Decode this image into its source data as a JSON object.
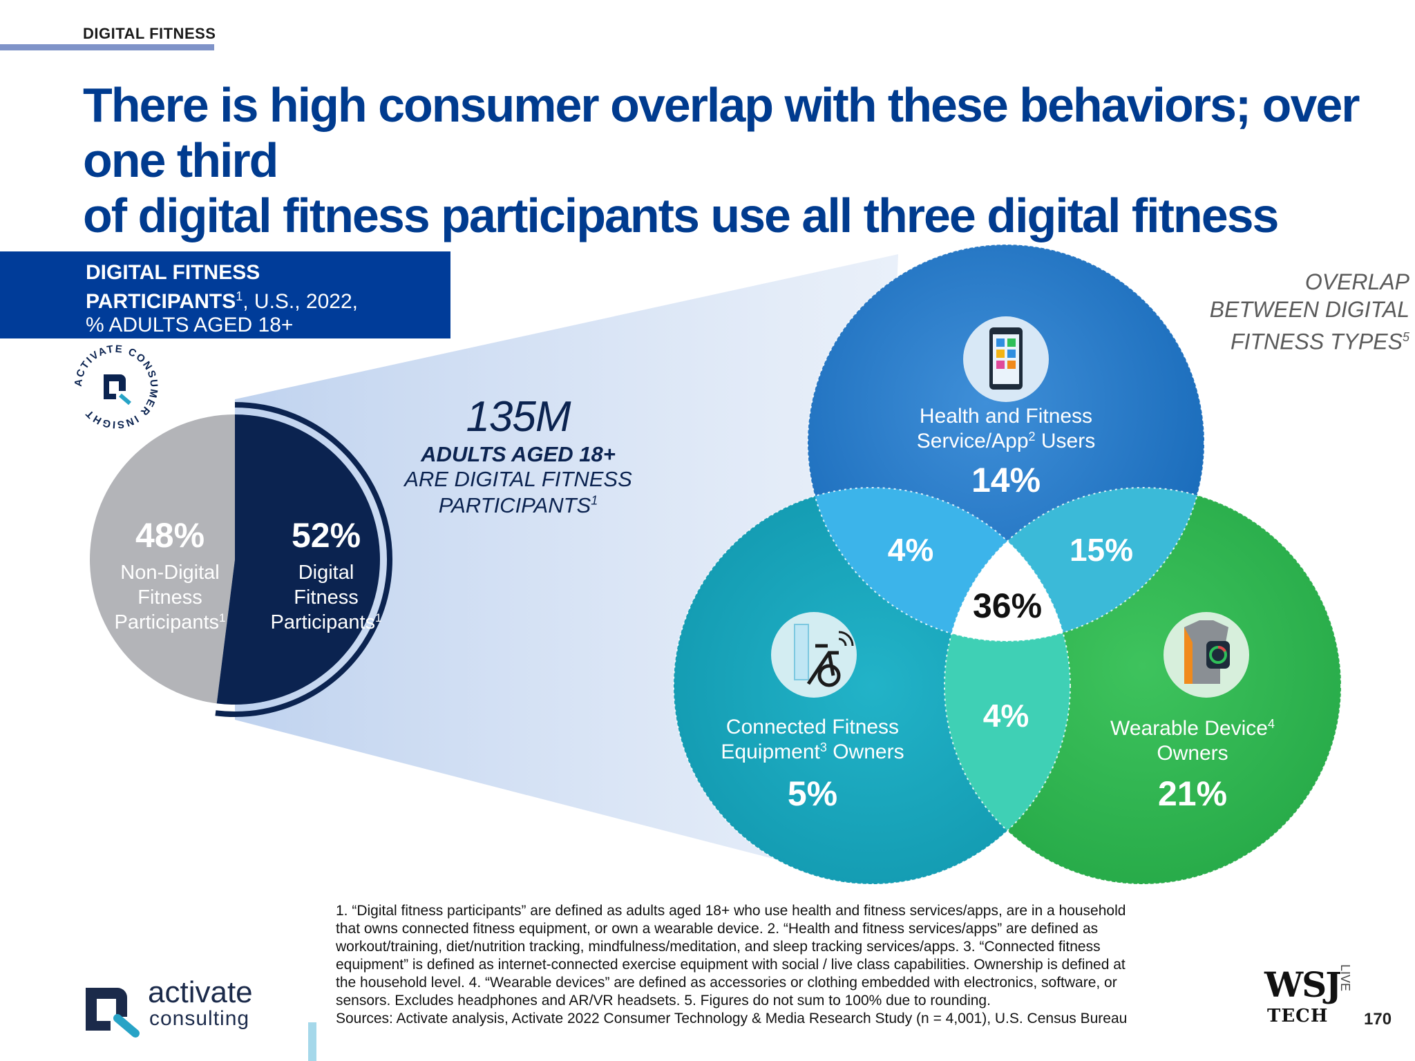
{
  "header": {
    "section_tag": "DIGITAL FITNESS",
    "headline_line1": "There is high consumer overlap with these behaviors; over one third",
    "headline_line2": "of digital fitness participants use all three digital fitness types"
  },
  "box": {
    "line1": "DIGITAL FITNESS",
    "line2_bold": "PARTICIPANTS",
    "line2_sup": "1",
    "line2_rest": ", U.S., 2022,",
    "line3": "% ADULTS AGED 18+"
  },
  "badge": {
    "text": "ACTIVATE CONSUMER INSIGHT"
  },
  "callout": {
    "number": "135M",
    "line1": "ADULTS AGED 18+",
    "line2": "ARE DIGITAL FITNESS",
    "line3": "PARTICIPANTS",
    "line3_sup": "1"
  },
  "overlap_label": {
    "line1": "OVERLAP",
    "line2": "BETWEEN DIGITAL",
    "line3": "FITNESS TYPES",
    "sup": "5"
  },
  "chart_data": [
    {
      "type": "pie",
      "labels": [
        "Non-Digital Fitness Participants",
        "Digital Fitness Participants"
      ],
      "values": [
        48,
        52
      ],
      "value_labels": [
        "48%",
        "52%"
      ],
      "label_lines": [
        [
          "Non-Digital",
          "Fitness",
          "Participants"
        ],
        [
          "Digital",
          "Fitness",
          "Participants"
        ]
      ],
      "label_sup": "1",
      "colors": [
        "#b3b4b8",
        "#0b2350"
      ]
    },
    {
      "type": "venn",
      "sets": [
        {
          "name_lines": [
            "Health and Fitness",
            "Service/App",
            " Users"
          ],
          "sup": "2",
          "value": 14,
          "label": "14%",
          "color": "#1f78c8"
        },
        {
          "name_lines": [
            "Connected Fitness",
            "Equipment",
            " Owners"
          ],
          "sup": "3",
          "value": 5,
          "label": "5%",
          "color": "#1aa3b9"
        },
        {
          "name_lines": [
            "Wearable Device",
            "Owners"
          ],
          "sup": "4",
          "value": 21,
          "label": "21%",
          "color": "#2fb24f"
        }
      ],
      "intersections": [
        {
          "sets": [
            "Health and Fitness",
            "Connected Fitness"
          ],
          "value": 4,
          "label": "4%"
        },
        {
          "sets": [
            "Health and Fitness",
            "Wearable Device"
          ],
          "value": 15,
          "label": "15%"
        },
        {
          "sets": [
            "Connected Fitness",
            "Wearable Device"
          ],
          "value": 4,
          "label": "4%"
        },
        {
          "sets": [
            "Health and Fitness",
            "Connected Fitness",
            "Wearable Device"
          ],
          "value": 36,
          "label": "36%"
        }
      ],
      "colors": {
        "hc": "#3db5ea",
        "hw": "#39b8d6",
        "cw": "#3dd1b4",
        "all": "#ffffff"
      }
    }
  ],
  "footnote": {
    "line1": "1. “Digital fitness participants” are defined as adults aged 18+ who use health and fitness services/apps, are in a household",
    "line2": "that owns connected fitness equipment, or own a wearable device.  2. “Health and fitness services/apps” are defined as",
    "line3": "workout/training, diet/nutrition tracking, mindfulness/meditation, and sleep tracking services/apps.  3. “Connected fitness",
    "line4": "equipment” is defined as internet-connected exercise equipment with social / live class capabilities. Ownership is defined at",
    "line5": "the household level.  4. “Wearable devices” are defined as accessories or clothing embedded with electronics, software, or",
    "line6": "sensors. Excludes headphones and AR/VR headsets.  5. Figures do not sum to 100% due to rounding.",
    "line7": "Sources: Activate analysis, Activate 2022 Consumer Technology & Media Research Study (n = 4,001), U.S. Census Bureau"
  },
  "branding": {
    "logo_word": "activate",
    "logo_sub": "consulting",
    "wsj": "WSJ",
    "tech": "TECH",
    "live": "LIVE",
    "page_number": "170"
  }
}
